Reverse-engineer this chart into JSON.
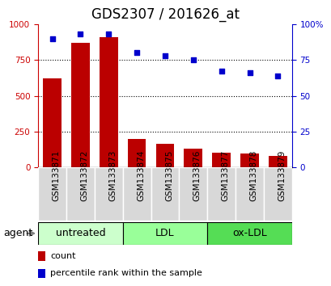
{
  "title": "GDS2307 / 201626_at",
  "samples": [
    "GSM133871",
    "GSM133872",
    "GSM133873",
    "GSM133874",
    "GSM133875",
    "GSM133876",
    "GSM133877",
    "GSM133878",
    "GSM133879"
  ],
  "counts": [
    620,
    870,
    910,
    200,
    165,
    130,
    100,
    95,
    80
  ],
  "percentiles": [
    90,
    93,
    93,
    80,
    78,
    75,
    67,
    66,
    64
  ],
  "groups": [
    {
      "label": "untreated",
      "start": 0,
      "end": 3,
      "color": "#ccffcc"
    },
    {
      "label": "LDL",
      "start": 3,
      "end": 6,
      "color": "#99ff99"
    },
    {
      "label": "ox-LDL",
      "start": 6,
      "end": 9,
      "color": "#55dd55"
    }
  ],
  "bar_color": "#bb0000",
  "dot_color": "#0000cc",
  "left_axis_color": "#cc0000",
  "right_axis_color": "#0000cc",
  "ylim_left": [
    0,
    1000
  ],
  "ylim_right": [
    0,
    100
  ],
  "yticks_left": [
    0,
    250,
    500,
    750,
    1000
  ],
  "yticks_right": [
    0,
    25,
    50,
    75,
    100
  ],
  "bg_color": "#ffffff",
  "title_fontsize": 12,
  "tick_fontsize": 7.5,
  "legend_count_label": "count",
  "legend_pct_label": "percentile rank within the sample",
  "agent_label": "agent",
  "group_label_fontsize": 9,
  "agent_fontsize": 9,
  "cell_bg": "#d8d8d8",
  "plot_bg": "#ffffff"
}
